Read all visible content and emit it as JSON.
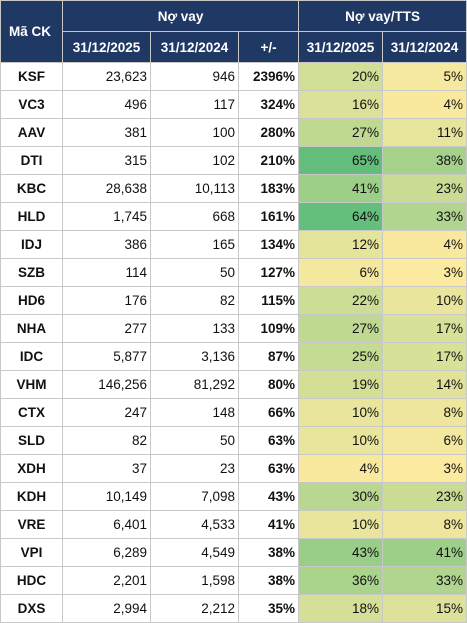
{
  "header": {
    "code": "Mã CK",
    "debt_group": "Nợ vay",
    "ratio_group": "Nợ vay/TTS",
    "col_2025": "31/12/2025",
    "col_2024": "31/12/2024",
    "change": "+/-",
    "ratio_2025": "31/12/2025",
    "ratio_2024": "31/12/2024"
  },
  "colors": {
    "header_bg": "#1f3864",
    "scale_low": "#fbeaa0",
    "scale_high": "#63be7b"
  },
  "rows": [
    {
      "code": "KSF",
      "debt_2025": "23,623",
      "debt_2024": "946",
      "change": "2396%",
      "ratio_2025": "20%",
      "ratio_2024": "5%"
    },
    {
      "code": "VC3",
      "debt_2025": "496",
      "debt_2024": "117",
      "change": "324%",
      "ratio_2025": "16%",
      "ratio_2024": "4%"
    },
    {
      "code": "AAV",
      "debt_2025": "381",
      "debt_2024": "100",
      "change": "280%",
      "ratio_2025": "27%",
      "ratio_2024": "11%"
    },
    {
      "code": "DTI",
      "debt_2025": "315",
      "debt_2024": "102",
      "change": "210%",
      "ratio_2025": "65%",
      "ratio_2024": "38%"
    },
    {
      "code": "KBC",
      "debt_2025": "28,638",
      "debt_2024": "10,113",
      "change": "183%",
      "ratio_2025": "41%",
      "ratio_2024": "23%"
    },
    {
      "code": "HLD",
      "debt_2025": "1,745",
      "debt_2024": "668",
      "change": "161%",
      "ratio_2025": "64%",
      "ratio_2024": "33%"
    },
    {
      "code": "IDJ",
      "debt_2025": "386",
      "debt_2024": "165",
      "change": "134%",
      "ratio_2025": "12%",
      "ratio_2024": "4%"
    },
    {
      "code": "SZB",
      "debt_2025": "114",
      "debt_2024": "50",
      "change": "127%",
      "ratio_2025": "6%",
      "ratio_2024": "3%"
    },
    {
      "code": "HD6",
      "debt_2025": "176",
      "debt_2024": "82",
      "change": "115%",
      "ratio_2025": "22%",
      "ratio_2024": "10%"
    },
    {
      "code": "NHA",
      "debt_2025": "277",
      "debt_2024": "133",
      "change": "109%",
      "ratio_2025": "27%",
      "ratio_2024": "17%"
    },
    {
      "code": "IDC",
      "debt_2025": "5,877",
      "debt_2024": "3,136",
      "change": "87%",
      "ratio_2025": "25%",
      "ratio_2024": "17%"
    },
    {
      "code": "VHM",
      "debt_2025": "146,256",
      "debt_2024": "81,292",
      "change": "80%",
      "ratio_2025": "19%",
      "ratio_2024": "14%"
    },
    {
      "code": "CTX",
      "debt_2025": "247",
      "debt_2024": "148",
      "change": "66%",
      "ratio_2025": "10%",
      "ratio_2024": "8%"
    },
    {
      "code": "SLD",
      "debt_2025": "82",
      "debt_2024": "50",
      "change": "63%",
      "ratio_2025": "10%",
      "ratio_2024": "6%"
    },
    {
      "code": "XDH",
      "debt_2025": "37",
      "debt_2024": "23",
      "change": "63%",
      "ratio_2025": "4%",
      "ratio_2024": "3%"
    },
    {
      "code": "KDH",
      "debt_2025": "10,149",
      "debt_2024": "7,098",
      "change": "43%",
      "ratio_2025": "30%",
      "ratio_2024": "23%"
    },
    {
      "code": "VRE",
      "debt_2025": "6,401",
      "debt_2024": "4,533",
      "change": "41%",
      "ratio_2025": "10%",
      "ratio_2024": "8%"
    },
    {
      "code": "VPI",
      "debt_2025": "6,289",
      "debt_2024": "4,549",
      "change": "38%",
      "ratio_2025": "43%",
      "ratio_2024": "41%"
    },
    {
      "code": "HDC",
      "debt_2025": "2,201",
      "debt_2024": "1,598",
      "change": "38%",
      "ratio_2025": "36%",
      "ratio_2024": "33%"
    },
    {
      "code": "DXS",
      "debt_2025": "2,994",
      "debt_2024": "2,212",
      "change": "35%",
      "ratio_2025": "18%",
      "ratio_2024": "15%"
    }
  ]
}
